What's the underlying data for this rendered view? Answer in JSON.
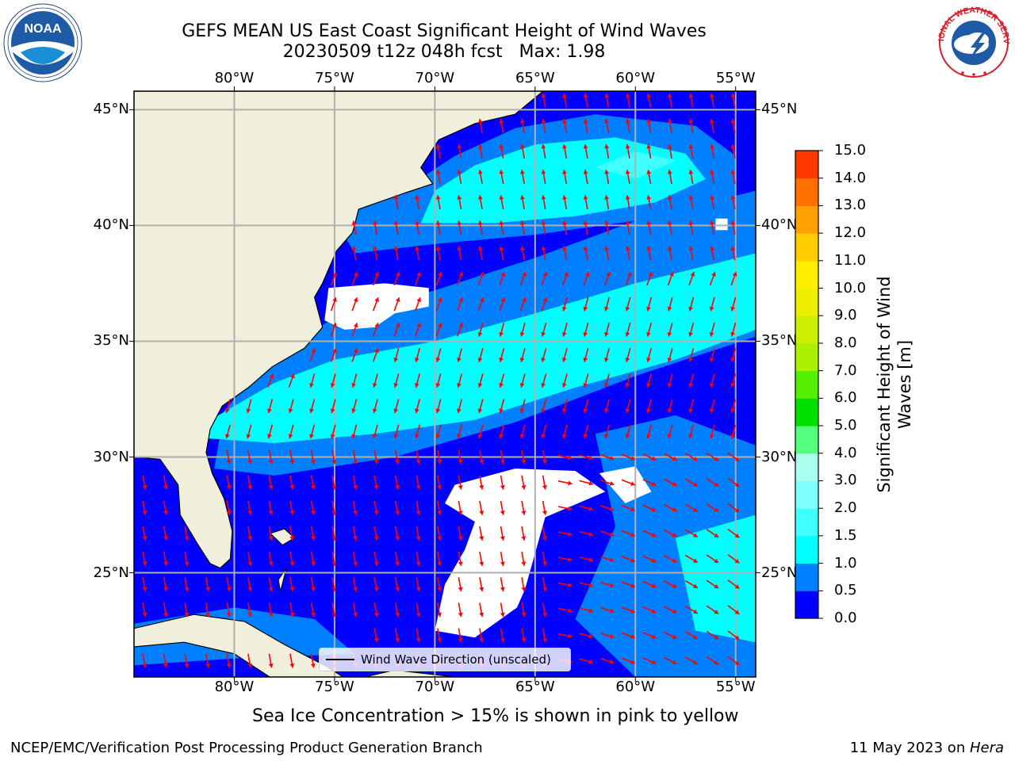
{
  "title": {
    "line1": "GEFS MEAN US East Coast Significant Height of Wind Waves",
    "line2": "20230509 t12z 048h fcst   Max: 1.98"
  },
  "logos": {
    "left": {
      "name": "noaa-logo",
      "text": "NOAA",
      "color": "#1f5aa6"
    },
    "right": {
      "name": "nws-logo",
      "text": "NATIONAL WEATHER SERVICE",
      "color": "#d4202a"
    }
  },
  "map": {
    "projection": "lat-lon",
    "lon_range": [
      -85,
      -54
    ],
    "lat_range": [
      20.5,
      45.8
    ],
    "lon_ticks": [
      {
        "value": -80,
        "label": "80°W"
      },
      {
        "value": -75,
        "label": "75°W"
      },
      {
        "value": -70,
        "label": "70°W"
      },
      {
        "value": -65,
        "label": "65°W"
      },
      {
        "value": -60,
        "label": "60°W"
      },
      {
        "value": -55,
        "label": "55°W"
      }
    ],
    "lat_ticks": [
      {
        "value": 45,
        "label": "45°N"
      },
      {
        "value": 40,
        "label": "40°N"
      },
      {
        "value": 35,
        "label": "35°N"
      },
      {
        "value": 30,
        "label": "30°N"
      },
      {
        "value": 25,
        "label": "25°N"
      }
    ],
    "grid": true,
    "land_color": "#efefdc",
    "ocean_base_color": "#0000ff",
    "missing_color": "#ffffff",
    "arrow_color": "#ff0000",
    "legend_label": "Wind Wave Direction (unscaled)"
  },
  "colorbar": {
    "title": "Significant Height of Wind Waves [m]",
    "levels": [
      {
        "value": 0.0,
        "label": "0.0",
        "color": "#0000ff"
      },
      {
        "value": 0.5,
        "label": "0.5",
        "color": "#0080ff"
      },
      {
        "value": 1.0,
        "label": "1.0",
        "color": "#00ffff"
      },
      {
        "value": 1.5,
        "label": "1.5",
        "color": "#40ffff"
      },
      {
        "value": 2.0,
        "label": "2.0",
        "color": "#80ffff"
      },
      {
        "value": 3.0,
        "label": "3.0",
        "color": "#aaffee"
      },
      {
        "value": 4.0,
        "label": "4.0",
        "color": "#55ff80"
      },
      {
        "value": 5.0,
        "label": "5.0",
        "color": "#00e000"
      },
      {
        "value": 6.0,
        "label": "6.0",
        "color": "#55ee00"
      },
      {
        "value": 7.0,
        "label": "7.0",
        "color": "#aaee00"
      },
      {
        "value": 8.0,
        "label": "8.0",
        "color": "#ccee00"
      },
      {
        "value": 9.0,
        "label": "9.0",
        "color": "#eeee00"
      },
      {
        "value": 10.0,
        "label": "10.0",
        "color": "#ffee00"
      },
      {
        "value": 11.0,
        "label": "11.0",
        "color": "#ffcc00"
      },
      {
        "value": 12.0,
        "label": "12.0",
        "color": "#ffa000"
      },
      {
        "value": 13.0,
        "label": "13.0",
        "color": "#ff7000"
      },
      {
        "value": 14.0,
        "label": "14.0",
        "color": "#ff3800"
      },
      {
        "value": 15.0,
        "label": "15.0",
        "color": "#ff0000"
      }
    ]
  },
  "notes": {
    "ice": "Sea Ice Concentration > 15% is shown in pink to yellow",
    "footer_left": "NCEP/EMC/Verification Post Processing Product Generation Branch",
    "footer_date": "11 May 2023 on ",
    "footer_machine": "Hera"
  }
}
